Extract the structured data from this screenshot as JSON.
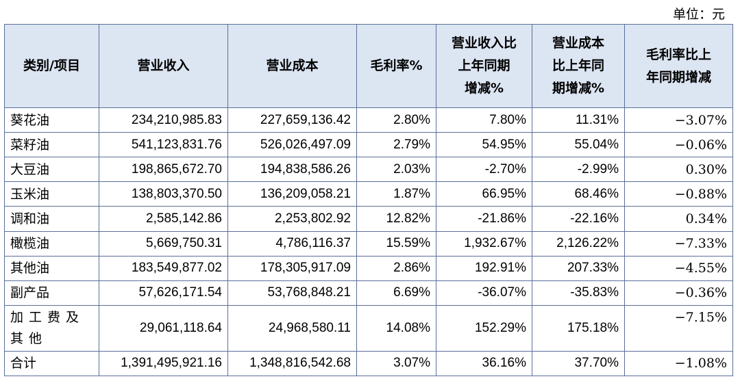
{
  "unit_label": "单位：元",
  "table": {
    "headers": [
      "类别/项目",
      "营业收入",
      "营业成本",
      "毛利率%",
      "营业收入比\n上年同期\n增减%",
      "营业成本\n比上年同\n期增减%",
      "毛利率比上\n年同期增减"
    ],
    "rows": [
      [
        "葵花油",
        "234,210,985.83",
        "227,659,136.42",
        "2.80%",
        "7.80%",
        "11.31%",
        "−3.07%"
      ],
      [
        "菜籽油",
        "541,123,831.76",
        "526,026,497.09",
        "2.79%",
        "54.95%",
        "55.04%",
        "−0.06%"
      ],
      [
        "大豆油",
        "198,865,672.70",
        "194,838,586.26",
        "2.03%",
        "-2.70%",
        "-2.99%",
        "0.30%"
      ],
      [
        "玉米油",
        "138,803,370.50",
        "136,209,058.21",
        "1.87%",
        "66.95%",
        "68.46%",
        "−0.88%"
      ],
      [
        "调和油",
        "2,585,142.86",
        "2,253,802.92",
        "12.82%",
        "-21.86%",
        "-22.16%",
        "0.34%"
      ],
      [
        "橄榄油",
        "5,669,750.31",
        "4,786,116.37",
        "15.59%",
        "1,932.67%",
        "2,126.22%",
        "−7.33%"
      ],
      [
        "其他油",
        "183,549,877.02",
        "178,305,917.09",
        "2.86%",
        "192.91%",
        "207.33%",
        "−4.55%"
      ],
      [
        "副产品",
        "57,626,171.54",
        "53,768,848.21",
        "6.69%",
        "-36.07%",
        "-35.83%",
        "−0.36%"
      ],
      [
        "加工费及其他",
        "29,061,118.64",
        "24,968,580.11",
        "14.08%",
        "152.29%",
        "175.18%",
        "−7.15%"
      ],
      [
        "合计",
        "1,391,495,921.16",
        "1,348,816,542.68",
        "3.07%",
        "36.16%",
        "37.70%",
        "−1.08%"
      ]
    ]
  }
}
